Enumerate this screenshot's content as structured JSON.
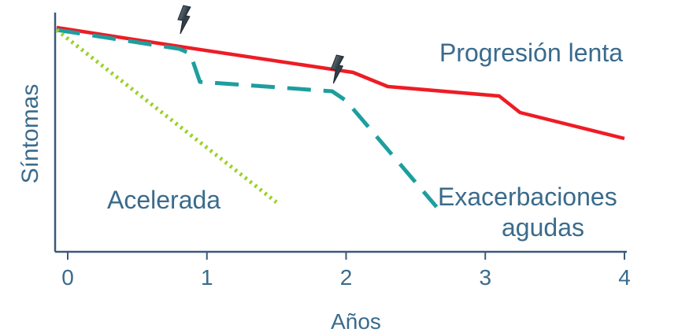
{
  "chart_data": {
    "type": "line",
    "xlabel": "Años",
    "ylabel": "Síntomas",
    "xticks": [
      "0",
      "1",
      "2",
      "3",
      "4"
    ],
    "xlim": [
      0,
      4
    ],
    "ylim": [
      0,
      100
    ],
    "grid": false,
    "series": [
      {
        "name": "Progresión lenta",
        "color": "#ee1c25",
        "style": "solid",
        "x": [
          -0.08,
          0.8,
          2.05,
          2.3,
          3.1,
          3.25,
          4
        ],
        "y": [
          95,
          87,
          76,
          70,
          66,
          59,
          48
        ]
      },
      {
        "name": "Exacerbaciones agudas",
        "color": "#1e9e9e",
        "style": "dashed",
        "x": [
          -0.08,
          0.8,
          0.88,
          0.95,
          1.9,
          2.0,
          2.65
        ],
        "y": [
          94,
          86,
          84,
          72,
          68,
          64,
          19
        ]
      },
      {
        "name": "Acelerada",
        "color": "#9bd12a",
        "style": "dotted",
        "x": [
          -0.08,
          1.5
        ],
        "y": [
          94,
          21
        ]
      }
    ],
    "annotations": [
      {
        "type": "lightning-icon",
        "x": 0.82,
        "y": 99
      },
      {
        "type": "lightning-icon",
        "x": 1.92,
        "y": 78
      }
    ]
  }
}
